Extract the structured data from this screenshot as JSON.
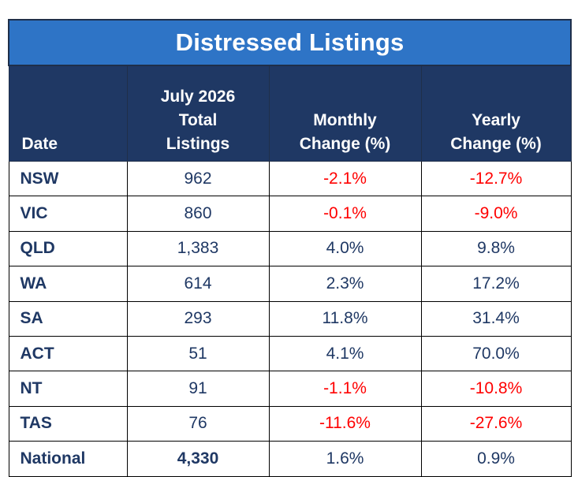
{
  "title": "Distressed Listings",
  "headers": {
    "date": "Date",
    "total_line1": "July 2026",
    "total_line2": "Total",
    "total_line3": "Listings",
    "monthly_line1": "Monthly",
    "monthly_line2": "Change (%)",
    "yearly_line1": "Yearly",
    "yearly_line2": "Change (%)"
  },
  "rows": [
    {
      "state": "NSW",
      "total": "962",
      "monthly": "-2.1%",
      "yearly": "-12.7%",
      "monthly_negative": true,
      "yearly_negative": true
    },
    {
      "state": "VIC",
      "total": "860",
      "monthly": "-0.1%",
      "yearly": "-9.0%",
      "monthly_negative": true,
      "yearly_negative": true
    },
    {
      "state": "QLD",
      "total": "1,383",
      "monthly": "4.0%",
      "yearly": "9.8%",
      "monthly_negative": false,
      "yearly_negative": false
    },
    {
      "state": "WA",
      "total": "614",
      "monthly": "2.3%",
      "yearly": "17.2%",
      "monthly_negative": false,
      "yearly_negative": false
    },
    {
      "state": "SA",
      "total": "293",
      "monthly": "11.8%",
      "yearly": "31.4%",
      "monthly_negative": false,
      "yearly_negative": false
    },
    {
      "state": "ACT",
      "total": "51",
      "monthly": "4.1%",
      "yearly": "70.0%",
      "monthly_negative": false,
      "yearly_negative": false
    },
    {
      "state": "NT",
      "total": "91",
      "monthly": "-1.1%",
      "yearly": "-10.8%",
      "monthly_negative": true,
      "yearly_negative": true
    },
    {
      "state": "TAS",
      "total": "76",
      "monthly": "-11.6%",
      "yearly": "-27.6%",
      "monthly_negative": true,
      "yearly_negative": true
    },
    {
      "state": "National",
      "total": "4,330",
      "monthly": "1.6%",
      "yearly": "0.9%",
      "monthly_negative": false,
      "yearly_negative": false
    }
  ],
  "colors": {
    "title_bg": "#2e74c6",
    "header_bg": "#1f3864",
    "text": "#1f3864",
    "negative": "#ff0000"
  }
}
